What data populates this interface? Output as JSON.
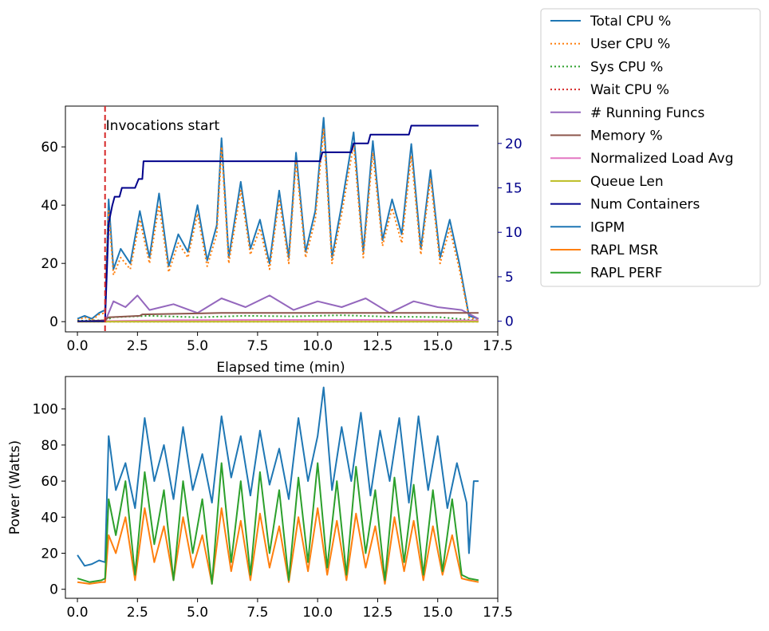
{
  "colors": {
    "total_cpu": "#1f77b4",
    "user_cpu": "#ff7f0e",
    "sys_cpu": "#2ca02c",
    "wait_cpu": "#d62728",
    "running_funcs": "#9467bd",
    "memory": "#8c564b",
    "load_avg": "#e377c2",
    "queue_len": "#bcbd22",
    "num_containers": "#00008b",
    "igpm": "#1f77b4",
    "rapl_msr": "#ff7f0e",
    "rapl_perf": "#2ca02c",
    "vline": "#d62728"
  },
  "chart_data": [
    {
      "type": "line",
      "xlabel": "Elapsed time (min)",
      "ylabel": "",
      "xlim": [
        -0.5,
        17.5
      ],
      "ylim": [
        -3.5,
        74
      ],
      "y2lim": [
        -1.2,
        24.2
      ],
      "x_ticks": [
        0.0,
        2.5,
        5.0,
        7.5,
        10.0,
        12.5,
        15.0,
        17.5
      ],
      "x_tick_labels": [
        "0.0",
        "2.5",
        "5.0",
        "7.5",
        "10.0",
        "12.5",
        "15.0",
        "17.5"
      ],
      "y_ticks": [
        0,
        20,
        40,
        60
      ],
      "y_tick_labels": [
        "0",
        "20",
        "40",
        "60"
      ],
      "y2_ticks": [
        0,
        5,
        10,
        15,
        20
      ],
      "y2_tick_labels": [
        "0",
        "5",
        "10",
        "15",
        "20"
      ],
      "annotation": {
        "text": "Invocations start",
        "x": 1.15
      },
      "series": [
        {
          "name": "Total CPU %",
          "style": "solid",
          "x": [
            0,
            0.3,
            0.6,
            0.9,
            1.15,
            1.3,
            1.5,
            1.8,
            2.2,
            2.6,
            3.0,
            3.4,
            3.8,
            4.2,
            4.6,
            5.0,
            5.4,
            5.8,
            6.0,
            6.3,
            6.8,
            7.2,
            7.6,
            8.0,
            8.4,
            8.8,
            9.1,
            9.5,
            9.9,
            10.25,
            10.6,
            11.0,
            11.5,
            11.9,
            12.3,
            12.7,
            13.1,
            13.5,
            13.9,
            14.3,
            14.7,
            15.1,
            15.5,
            15.9,
            16.3,
            16.7
          ],
          "y": [
            1,
            2,
            1,
            3,
            4,
            42,
            18,
            25,
            20,
            38,
            22,
            44,
            19,
            30,
            24,
            40,
            21,
            33,
            63,
            22,
            48,
            25,
            35,
            20,
            45,
            22,
            58,
            24,
            38,
            70,
            22,
            40,
            65,
            24,
            62,
            28,
            42,
            30,
            61,
            25,
            52,
            22,
            35,
            20,
            2,
            1
          ]
        },
        {
          "name": "User CPU %",
          "style": "dotted",
          "x": [
            0,
            0.3,
            0.6,
            0.9,
            1.15,
            1.3,
            1.5,
            1.8,
            2.2,
            2.6,
            3.0,
            3.4,
            3.8,
            4.2,
            4.6,
            5.0,
            5.4,
            5.8,
            6.0,
            6.3,
            6.8,
            7.2,
            7.6,
            8.0,
            8.4,
            8.8,
            9.1,
            9.5,
            9.9,
            10.25,
            10.6,
            11.0,
            11.5,
            11.9,
            12.3,
            12.7,
            13.1,
            13.5,
            13.9,
            14.3,
            14.7,
            15.1,
            15.5,
            15.9,
            16.3,
            16.7
          ],
          "y": [
            0.5,
            1.5,
            0.5,
            2.5,
            3,
            38,
            16,
            22,
            18,
            35,
            20,
            40,
            17,
            27,
            22,
            37,
            19,
            30,
            60,
            20,
            45,
            23,
            32,
            18,
            42,
            20,
            55,
            22,
            35,
            66,
            20,
            37,
            61,
            22,
            58,
            26,
            39,
            27,
            57,
            23,
            49,
            20,
            32,
            18,
            1.5,
            0.5
          ]
        },
        {
          "name": "Sys CPU %",
          "style": "dotted",
          "x": [
            0,
            1.15,
            1.5,
            3,
            5,
            7,
            9,
            11,
            13,
            15,
            16.7
          ],
          "y": [
            0.3,
            0.5,
            1.5,
            2,
            1.5,
            2,
            1.8,
            2.2,
            1.7,
            1.6,
            0.4
          ]
        },
        {
          "name": "Wait CPU %",
          "style": "dotted",
          "x": [
            0,
            16.7
          ],
          "y": [
            0,
            0
          ]
        },
        {
          "name": "# Running Funcs",
          "style": "solid",
          "x": [
            0,
            1.15,
            1.5,
            2.0,
            2.5,
            3.0,
            4.0,
            5.0,
            6.0,
            7.0,
            8.0,
            9.0,
            10.0,
            11.0,
            12.0,
            13.0,
            14.0,
            15.0,
            16.0,
            16.7
          ],
          "y": [
            0,
            0,
            7,
            5,
            9,
            4,
            6,
            3,
            8,
            5,
            9,
            4,
            7,
            5,
            8,
            3,
            7,
            5,
            4,
            1
          ]
        },
        {
          "name": "Memory %",
          "style": "solid",
          "x": [
            0,
            1.15,
            1.3,
            2.6,
            2.7,
            6.0,
            16.7
          ],
          "y": [
            0,
            0.5,
            1.5,
            2,
            2.5,
            3,
            3
          ]
        },
        {
          "name": "Normalized Load Avg",
          "style": "solid",
          "x": [
            0,
            1.15,
            4,
            8,
            12,
            16.7
          ],
          "y": [
            0,
            0.2,
            0.5,
            0.6,
            0.6,
            0.4
          ]
        },
        {
          "name": "Queue Len",
          "style": "solid",
          "x": [
            0,
            16.7
          ],
          "y": [
            0,
            0
          ]
        },
        {
          "name": "Num Containers",
          "style": "solid",
          "axis": "right",
          "x": [
            0,
            1.15,
            1.3,
            1.45,
            1.55,
            1.75,
            1.85,
            2.4,
            2.55,
            2.7,
            2.75,
            10.1,
            10.2,
            11.4,
            11.5,
            12.1,
            12.2,
            13.8,
            13.9,
            16.7
          ],
          "y": [
            0,
            0,
            11,
            13,
            14,
            14,
            15,
            15,
            16,
            16,
            18,
            18,
            19,
            19,
            20,
            20,
            21,
            21,
            22,
            22
          ]
        }
      ]
    },
    {
      "type": "line",
      "xlabel": "",
      "ylabel": "Power (Watts)",
      "xlim": [
        -0.5,
        17.5
      ],
      "ylim": [
        -5,
        118
      ],
      "x_ticks": [
        0.0,
        2.5,
        5.0,
        7.5,
        10.0,
        12.5,
        15.0,
        17.5
      ],
      "x_tick_labels": [
        "0.0",
        "2.5",
        "5.0",
        "7.5",
        "10.0",
        "12.5",
        "15.0",
        "17.5"
      ],
      "y_ticks": [
        0,
        20,
        40,
        60,
        80,
        100
      ],
      "y_tick_labels": [
        "0",
        "20",
        "40",
        "60",
        "80",
        "100"
      ],
      "series": [
        {
          "name": "IGPM",
          "x": [
            0,
            0.3,
            0.6,
            0.9,
            1.15,
            1.3,
            1.6,
            2.0,
            2.4,
            2.8,
            3.2,
            3.6,
            4.0,
            4.4,
            4.8,
            5.2,
            5.6,
            6.0,
            6.4,
            6.8,
            7.2,
            7.6,
            8.0,
            8.4,
            8.8,
            9.2,
            9.6,
            10.0,
            10.25,
            10.6,
            11.0,
            11.4,
            11.8,
            12.2,
            12.6,
            13.0,
            13.4,
            13.8,
            14.2,
            14.6,
            15.0,
            15.4,
            15.8,
            16.2,
            16.3,
            16.5,
            16.7
          ],
          "y": [
            19,
            13,
            14,
            16,
            15,
            85,
            55,
            70,
            45,
            95,
            60,
            80,
            50,
            90,
            55,
            75,
            48,
            96,
            62,
            85,
            52,
            88,
            58,
            78,
            50,
            95,
            60,
            85,
            112,
            55,
            90,
            60,
            98,
            52,
            88,
            60,
            95,
            48,
            96,
            55,
            85,
            45,
            70,
            48,
            20,
            60,
            60
          ]
        },
        {
          "name": "RAPL MSR",
          "x": [
            0,
            0.5,
            1.0,
            1.15,
            1.3,
            1.6,
            2.0,
            2.4,
            2.8,
            3.2,
            3.6,
            4.0,
            4.4,
            4.8,
            5.2,
            5.6,
            6.0,
            6.4,
            6.8,
            7.2,
            7.6,
            8.0,
            8.4,
            8.8,
            9.2,
            9.6,
            10.0,
            10.4,
            10.8,
            11.2,
            11.6,
            12.0,
            12.4,
            12.8,
            13.2,
            13.6,
            14.0,
            14.4,
            14.8,
            15.2,
            15.6,
            16.0,
            16.3,
            16.7
          ],
          "y": [
            4,
            3,
            4,
            4,
            30,
            20,
            40,
            5,
            45,
            15,
            35,
            5,
            40,
            12,
            30,
            3,
            45,
            10,
            38,
            5,
            42,
            12,
            35,
            4,
            40,
            10,
            45,
            8,
            38,
            5,
            42,
            12,
            35,
            3,
            40,
            10,
            38,
            5,
            35,
            8,
            30,
            6,
            5,
            4
          ]
        },
        {
          "name": "RAPL PERF",
          "x": [
            0,
            0.5,
            1.0,
            1.15,
            1.3,
            1.6,
            2.0,
            2.4,
            2.8,
            3.2,
            3.6,
            4.0,
            4.4,
            4.8,
            5.2,
            5.6,
            6.0,
            6.4,
            6.8,
            7.2,
            7.6,
            8.0,
            8.4,
            8.8,
            9.2,
            9.6,
            10.0,
            10.4,
            10.8,
            11.2,
            11.6,
            12.0,
            12.4,
            12.8,
            13.2,
            13.6,
            14.0,
            14.4,
            14.8,
            15.2,
            15.6,
            16.0,
            16.3,
            16.7
          ],
          "y": [
            6,
            4,
            5,
            6,
            50,
            30,
            60,
            8,
            65,
            25,
            55,
            5,
            60,
            20,
            50,
            3,
            70,
            15,
            60,
            8,
            65,
            20,
            55,
            5,
            62,
            15,
            70,
            12,
            60,
            8,
            68,
            20,
            55,
            5,
            62,
            15,
            58,
            8,
            55,
            10,
            50,
            8,
            6,
            5
          ]
        }
      ]
    }
  ],
  "legend": {
    "placement": "outside-top-right",
    "items": [
      {
        "label": "Total CPU %",
        "color": "#1f77b4",
        "style": "solid"
      },
      {
        "label": "User CPU %",
        "color": "#ff7f0e",
        "style": "dotted"
      },
      {
        "label": "Sys CPU %",
        "color": "#2ca02c",
        "style": "dotted"
      },
      {
        "label": "Wait CPU %",
        "color": "#d62728",
        "style": "dotted"
      },
      {
        "label": "# Running Funcs",
        "color": "#9467bd",
        "style": "solid"
      },
      {
        "label": "Memory %",
        "color": "#8c564b",
        "style": "solid"
      },
      {
        "label": "Normalized Load Avg",
        "color": "#e377c2",
        "style": "solid"
      },
      {
        "label": "Queue Len",
        "color": "#bcbd22",
        "style": "solid"
      },
      {
        "label": "Num Containers",
        "color": "#00008b",
        "style": "solid"
      },
      {
        "label": "IGPM",
        "color": "#1f77b4",
        "style": "solid"
      },
      {
        "label": "RAPL MSR",
        "color": "#ff7f0e",
        "style": "solid"
      },
      {
        "label": "RAPL PERF",
        "color": "#2ca02c",
        "style": "solid"
      }
    ]
  }
}
